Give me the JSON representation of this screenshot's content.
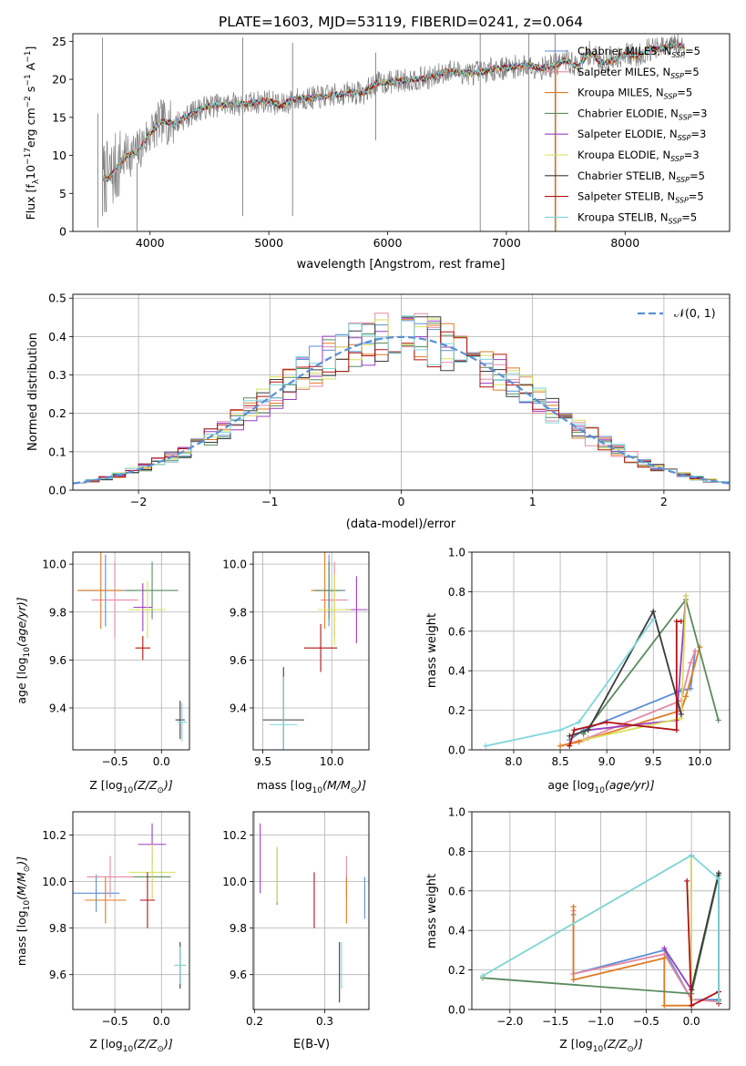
{
  "figure_title": "PLATE=1603, MJD=53119, FIBERID=0241, z=0.064",
  "models": [
    {
      "name": "Chabrier MILES",
      "label": "Chabrier MILES, N",
      "nssp": "=5",
      "color": "#5b8fd4"
    },
    {
      "name": "Salpeter MILES",
      "label": "Salpeter MILES, N",
      "nssp": "=5",
      "color": "#e58aa6"
    },
    {
      "name": "Kroupa MILES",
      "label": "Kroupa MILES, N",
      "nssp": "=5",
      "color": "#e07b22"
    },
    {
      "name": "Chabrier ELODIE",
      "label": "Chabrier ELODIE, N",
      "nssp": "=3",
      "color": "#5a8a5e"
    },
    {
      "name": "Salpeter ELODIE",
      "label": "Salpeter ELODIE, N",
      "nssp": "=3",
      "color": "#9a3fc2"
    },
    {
      "name": "Kroupa ELODIE",
      "label": "Kroupa ELODIE, N",
      "nssp": "=3",
      "color": "#d7e05a"
    },
    {
      "name": "Chabrier STELIB",
      "label": "Chabrier STELIB, N",
      "nssp": "=5",
      "color": "#3a3a3a"
    },
    {
      "name": "Salpeter STELIB",
      "label": "Salpeter STELIB, N",
      "nssp": "=5",
      "color": "#b01212"
    },
    {
      "name": "Kroupa STELIB",
      "label": "Kroupa STELIB, N",
      "nssp": "=5",
      "color": "#7fd6dc"
    }
  ],
  "nssp_sub": "SSP",
  "chart_data": [
    {
      "type": "line",
      "panel": "spectrum",
      "xlabel": "wavelength [Angstrom, rest frame]",
      "ylabel_parts": [
        "Flux [f",
        "λ",
        "10",
        "−17",
        "erg cm",
        "−2",
        "s",
        "−1",
        "A",
        "−1",
        "]"
      ],
      "xlim": [
        3350,
        8880
      ],
      "ylim": [
        0,
        26
      ],
      "xticks": [
        4000,
        5000,
        6000,
        7000,
        8000
      ],
      "yticks": [
        0,
        5,
        10,
        15,
        20,
        25
      ],
      "data_color": "#808080",
      "continuum": {
        "x": [
          3600,
          3650,
          3700,
          3800,
          3900,
          4000,
          4100,
          4200,
          4300,
          4400,
          4500,
          4600,
          4700,
          4800,
          4900,
          5000,
          5100,
          5200,
          5300,
          5400,
          5500,
          5600,
          5700,
          5800,
          5900,
          6000,
          6100,
          6200,
          6300,
          6400,
          6500,
          6600,
          6700,
          6800,
          6900,
          7000,
          7100,
          7200,
          7300,
          7400,
          7500,
          7600,
          7700,
          7800,
          7900,
          8000,
          8100,
          8200,
          8300,
          8400,
          8500
        ],
        "y": [
          7.0,
          7.0,
          8.0,
          10.0,
          10.5,
          13.0,
          14.5,
          14.2,
          15.0,
          16.0,
          16.5,
          16.6,
          16.8,
          16.7,
          17.0,
          17.2,
          16.5,
          17.3,
          17.5,
          17.6,
          17.8,
          18.0,
          18.3,
          18.2,
          19.5,
          19.6,
          19.8,
          20.0,
          20.1,
          20.3,
          21.2,
          20.9,
          20.8,
          21.0,
          21.4,
          21.5,
          21.7,
          21.8,
          21.5,
          21.8,
          22.5,
          21.6,
          23.5,
          22.2,
          22.5,
          23.5,
          23.0,
          24.0,
          24.0,
          24.5,
          24.3
        ]
      },
      "spikes": [
        [
          3560,
          0.5,
          15.5
        ],
        [
          3600,
          2,
          25.5
        ],
        [
          3890,
          0,
          9
        ],
        [
          4780,
          2,
          25.5
        ],
        [
          5200,
          2,
          24.8
        ],
        [
          5900,
          12,
          23.5
        ],
        [
          6780,
          0,
          26
        ],
        [
          7190,
          0,
          26
        ],
        [
          7410,
          0,
          26
        ]
      ]
    },
    {
      "type": "bar",
      "panel": "residuals",
      "xlabel": "(data-model)/error",
      "ylabel": "Normed distribution",
      "xlim": [
        -2.5,
        2.5
      ],
      "ylim": [
        0,
        0.51
      ],
      "xticks": [
        -2,
        -1,
        0,
        1,
        2
      ],
      "ytick_labels": [
        "0.0",
        "0.1",
        "0.2",
        "0.3",
        "0.4",
        "0.5"
      ],
      "yticks": [
        0,
        0.1,
        0.2,
        0.3,
        0.4,
        0.5
      ],
      "bin_edges_start": -2.5,
      "bin_width": 0.1,
      "gaussian_label": "𝒩(0, 1)",
      "gaussian_color": "#5a8fd6"
    },
    {
      "type": "scatter",
      "panel": "age-vs-Z",
      "xlabel": "Z [log",
      "xlabel_tail": "(Z/Z",
      "ylabel": "age  [log",
      "ylabel_tail": "(age/yr)]",
      "xlim": [
        -0.95,
        0.3
      ],
      "ylim": [
        9.225,
        10.05
      ],
      "xticks": [
        -0.5,
        0.0
      ],
      "xtick_labels": [
        "−0.5",
        "0.0"
      ],
      "yticks": [
        9.4,
        9.6,
        9.8,
        10.0
      ],
      "ytick_labels": [
        "9.4",
        "9.6",
        "9.8",
        "10.0"
      ],
      "points": [
        {
          "m": 0,
          "x": -0.6,
          "y": 9.89,
          "xe": 0.3,
          "ye": 0.15
        },
        {
          "m": 1,
          "x": -0.5,
          "y": 9.85,
          "xe": 0.25,
          "ye": 0.16
        },
        {
          "m": 2,
          "x": -0.65,
          "y": 9.89,
          "xe": 0.25,
          "ye": 0.16
        },
        {
          "m": 3,
          "x": -0.1,
          "y": 9.89,
          "xe": 0.28,
          "ye": 0.12
        },
        {
          "m": 4,
          "x": -0.2,
          "y": 9.82,
          "xe": 0.1,
          "ye": 0.1
        },
        {
          "m": 5,
          "x": -0.15,
          "y": 9.81,
          "xe": 0.2,
          "ye": 0.12
        },
        {
          "m": 6,
          "x": 0.2,
          "y": 9.35,
          "xe": 0.05,
          "ye": 0.08
        },
        {
          "m": 7,
          "x": -0.2,
          "y": 9.65,
          "xe": 0.08,
          "ye": 0.05
        },
        {
          "m": 8,
          "x": 0.22,
          "y": 9.34,
          "xe": 0.05,
          "ye": 0.08
        }
      ]
    },
    {
      "type": "scatter",
      "panel": "age-vs-mass",
      "xlabel": "mass [log",
      "xlabel_tail": "(M/M",
      "xlim": [
        9.43,
        10.27
      ],
      "ylim": [
        9.225,
        10.05
      ],
      "xticks": [
        9.5,
        10.0
      ],
      "xtick_labels": [
        "9.5",
        "10.0"
      ],
      "yticks": [
        9.4,
        9.6,
        9.8,
        10.0
      ],
      "ytick_labels": [
        "9.4",
        "9.6",
        "9.8",
        "10.0"
      ],
      "points": [
        {
          "m": 0,
          "x": 9.98,
          "y": 9.89,
          "xe": 0.12,
          "ye": 0.15
        },
        {
          "m": 1,
          "x": 10.02,
          "y": 9.85,
          "xe": 0.1,
          "ye": 0.16
        },
        {
          "m": 2,
          "x": 9.95,
          "y": 9.89,
          "xe": 0.1,
          "ye": 0.16
        },
        {
          "m": 3,
          "x": 9.98,
          "y": 9.89,
          "xe": 0.1,
          "ye": 0.12
        },
        {
          "m": 4,
          "x": 10.18,
          "y": 9.81,
          "xe": 0.08,
          "ye": 0.14
        },
        {
          "m": 5,
          "x": 10.02,
          "y": 9.81,
          "xe": 0.12,
          "ye": 0.15
        },
        {
          "m": 6,
          "x": 9.65,
          "y": 9.35,
          "xe": 0.15,
          "ye": 0.22
        },
        {
          "m": 7,
          "x": 9.92,
          "y": 9.65,
          "xe": 0.12,
          "ye": 0.1
        },
        {
          "m": 8,
          "x": 9.65,
          "y": 9.33,
          "xe": 0.1,
          "ye": 0.2
        }
      ]
    },
    {
      "type": "line",
      "panel": "mass-weight-vs-age",
      "xlabel": "age  [log",
      "xlabel_tail": "(age/yr)]",
      "ylabel": "mass weight",
      "xlim": [
        7.55,
        10.32
      ],
      "ylim": [
        0,
        1.0
      ],
      "xticks": [
        8.0,
        8.5,
        9.0,
        9.5,
        10.0
      ],
      "xtick_labels": [
        "8.0",
        "8.5",
        "9.0",
        "9.5",
        "10.0"
      ],
      "yticks": [
        0,
        0.2,
        0.4,
        0.6,
        0.8,
        1.0
      ],
      "ytick_labels": [
        "0.0",
        "0.2",
        "0.4",
        "0.6",
        "0.8",
        "1.0"
      ],
      "series": [
        {
          "m": 0,
          "x": [
            8.6,
            8.75,
            9.8,
            9.9,
            9.95
          ],
          "y": [
            0.05,
            0.1,
            0.3,
            0.31,
            0.5
          ]
        },
        {
          "m": 1,
          "x": [
            8.5,
            8.8,
            9.8,
            9.9,
            9.95
          ],
          "y": [
            0.02,
            0.06,
            0.25,
            0.44,
            0.5
          ]
        },
        {
          "m": 2,
          "x": [
            8.5,
            8.7,
            9.8,
            9.85,
            10.0
          ],
          "y": [
            0.02,
            0.04,
            0.2,
            0.27,
            0.52
          ]
        },
        {
          "m": 3,
          "x": [
            8.75,
            9.85,
            10.2
          ],
          "y": [
            0.08,
            0.76,
            0.15
          ]
        },
        {
          "m": 4,
          "x": [
            8.8,
            9.75,
            9.85
          ],
          "y": [
            0.1,
            0.15,
            0.78
          ]
        },
        {
          "m": 5,
          "x": [
            8.75,
            9.8,
            9.85
          ],
          "y": [
            0.05,
            0.16,
            0.78
          ]
        },
        {
          "m": 6,
          "x": [
            8.6,
            8.8,
            9.5,
            9.8
          ],
          "y": [
            0.07,
            0.1,
            0.7,
            0.18
          ]
        },
        {
          "m": 7,
          "x": [
            8.6,
            8.65,
            9.0,
            9.75,
            9.75,
            9.8
          ],
          "y": [
            0.02,
            0.1,
            0.14,
            0.1,
            0.65,
            0.65
          ]
        },
        {
          "m": 8,
          "x": [
            7.7,
            8.5,
            8.7,
            9.5
          ],
          "y": [
            0.02,
            0.1,
            0.14,
            0.66
          ]
        }
      ]
    },
    {
      "type": "scatter",
      "panel": "mass-vs-Z",
      "xlabel": "Z [log",
      "xlabel_tail": "(Z/Z",
      "ylabel": "mass [log",
      "ylabel_tail": "(M/M",
      "xlim": [
        -0.95,
        0.3
      ],
      "ylim": [
        9.45,
        10.3
      ],
      "xticks": [
        -0.5,
        0.0
      ],
      "xtick_labels": [
        "−0.5",
        "0.0"
      ],
      "yticks": [
        9.6,
        9.8,
        10.0,
        10.2
      ],
      "ytick_labels": [
        "9.6",
        "9.8",
        "10.0",
        "10.2"
      ],
      "points": [
        {
          "m": 0,
          "x": -0.7,
          "y": 9.95,
          "xe": 0.25,
          "ye": 0.08
        },
        {
          "m": 1,
          "x": -0.55,
          "y": 10.02,
          "xe": 0.25,
          "ye": 0.09
        },
        {
          "m": 2,
          "x": -0.6,
          "y": 9.92,
          "xe": 0.22,
          "ye": 0.1
        },
        {
          "m": 3,
          "x": -0.1,
          "y": 10.02,
          "xe": 0.2,
          "ye": 0.1
        },
        {
          "m": 4,
          "x": -0.1,
          "y": 10.16,
          "xe": 0.15,
          "ye": 0.09
        },
        {
          "m": 5,
          "x": -0.1,
          "y": 10.04,
          "xe": 0.25,
          "ye": 0.12
        },
        {
          "m": 6,
          "x": 0.2,
          "y": 9.64,
          "xe": 0.06,
          "ye": 0.1
        },
        {
          "m": 7,
          "x": -0.15,
          "y": 9.92,
          "xe": 0.08,
          "ye": 0.12
        },
        {
          "m": 8,
          "x": 0.2,
          "y": 9.64,
          "xe": 0.06,
          "ye": 0.08
        }
      ]
    },
    {
      "type": "scatter",
      "panel": "mass-vs-EBV",
      "xlabel": "E(B-V)",
      "xlim": [
        0.198,
        0.363
      ],
      "ylim": [
        9.45,
        10.3
      ],
      "xticks": [
        0.2,
        0.3
      ],
      "xtick_labels": [
        "0.2",
        "0.3"
      ],
      "yticks": [
        9.6,
        9.8,
        10.0,
        10.2
      ],
      "ytick_labels": [
        "9.6",
        "9.8",
        "10.0",
        "10.2"
      ],
      "points": [
        {
          "m": 0,
          "x": 0.357,
          "y": 9.93,
          "xe": 0,
          "ye": 0.09
        },
        {
          "m": 1,
          "x": 0.331,
          "y": 10.02,
          "xe": 0,
          "ye": 0.09
        },
        {
          "m": 2,
          "x": 0.331,
          "y": 9.92,
          "xe": 0,
          "ye": 0.1
        },
        {
          "m": 3,
          "x": 0.232,
          "y": 10.02,
          "xe": 0,
          "ye": 0.12
        },
        {
          "m": 4,
          "x": 0.208,
          "y": 10.1,
          "xe": 0,
          "ye": 0.15
        },
        {
          "m": 5,
          "x": 0.232,
          "y": 10.03,
          "xe": 0,
          "ye": 0.12
        },
        {
          "m": 6,
          "x": 0.321,
          "y": 9.61,
          "xe": 0,
          "ye": 0.13
        },
        {
          "m": 7,
          "x": 0.285,
          "y": 9.92,
          "xe": 0,
          "ye": 0.12
        },
        {
          "m": 8,
          "x": 0.324,
          "y": 9.64,
          "xe": 0,
          "ye": 0.1
        }
      ]
    },
    {
      "type": "line",
      "panel": "mass-weight-vs-Z",
      "xlabel": "Z [log",
      "xlabel_tail": "(Z/Z",
      "ylabel": "mass weight",
      "xlim": [
        -2.42,
        0.42
      ],
      "ylim": [
        0,
        1.0
      ],
      "xticks": [
        -2.0,
        -1.5,
        -1.0,
        -0.5,
        0.0
      ],
      "xtick_labels": [
        "−2.0",
        "−1.5",
        "−1.0",
        "−0.5",
        "0.0"
      ],
      "yticks": [
        0,
        0.2,
        0.4,
        0.6,
        0.8,
        1.0
      ],
      "ytick_labels": [
        "0.0",
        "0.2",
        "0.4",
        "0.6",
        "0.8",
        "1.0"
      ],
      "series": [
        {
          "m": 0,
          "x": [
            -1.3,
            -1.3,
            -0.3,
            0.0,
            0.3
          ],
          "y": [
            0.48,
            0.18,
            0.3,
            0.05,
            0.05
          ]
        },
        {
          "m": 1,
          "x": [
            -1.3,
            -1.3,
            -0.3,
            0.0,
            0.3
          ],
          "y": [
            0.5,
            0.18,
            0.28,
            0.05,
            0.04
          ]
        },
        {
          "m": 2,
          "x": [
            -1.3,
            -1.3,
            -0.3,
            -0.3,
            0.0
          ],
          "y": [
            0.52,
            0.15,
            0.26,
            0.02,
            0.02
          ]
        },
        {
          "m": 3,
          "x": [
            -2.3,
            0.0,
            0.3,
            0.3
          ],
          "y": [
            0.16,
            0.08,
            0.68,
            0.05
          ]
        },
        {
          "m": 4,
          "x": [
            0.0,
            0.0,
            -0.3
          ],
          "y": [
            0.78,
            0.1,
            0.31
          ]
        },
        {
          "m": 5,
          "x": [
            -2.3,
            0.0,
            0.0
          ],
          "y": [
            0.17,
            0.78,
            0.05
          ]
        },
        {
          "m": 6,
          "x": [
            0.0,
            0.3,
            0.3
          ],
          "y": [
            0.1,
            0.69,
            0.04
          ]
        },
        {
          "m": 7,
          "x": [
            -0.05,
            0.0,
            0.3,
            0.3
          ],
          "y": [
            0.65,
            0.02,
            0.09,
            0.03
          ]
        },
        {
          "m": 8,
          "x": [
            -2.3,
            0.0,
            0.3,
            0.3
          ],
          "y": [
            0.17,
            0.78,
            0.66,
            0.04
          ]
        }
      ]
    }
  ]
}
